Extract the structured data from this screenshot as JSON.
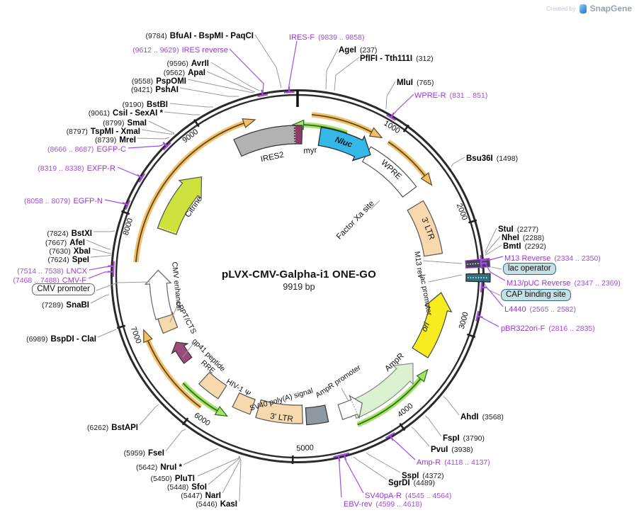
{
  "watermark": {
    "created_by": "Created by",
    "brand": "SnapGene"
  },
  "plasmid": {
    "name": "pLVX-CMV-Galpha-i1 ONE-GO",
    "length": "9919 bp"
  },
  "ticks": [
    "1000",
    "2000",
    "3000",
    "4000",
    "5000",
    "6000",
    "7000",
    "8000",
    "9000"
  ],
  "sites": [
    {
      "pos": "(9784)",
      "name": "BfuAI - BspMI - PaqCI"
    },
    {
      "pos": "(9596)",
      "name": "AvrII"
    },
    {
      "pos": "(9562)",
      "name": "ApaI"
    },
    {
      "pos": "(9558)",
      "name": "PspOMI"
    },
    {
      "pos": "(9421)",
      "name": "PshAI"
    },
    {
      "pos": "(9190)",
      "name": "BstBI"
    },
    {
      "pos": "(9061)",
      "name": "CsiI - SexAI *"
    },
    {
      "pos": "(8799)",
      "name": "SmaI"
    },
    {
      "pos": "(8797)",
      "name": "TspMI - XmaI"
    },
    {
      "pos": "(8739)",
      "name": "MreI"
    },
    {
      "pos": "(7824)",
      "name": "BstXI"
    },
    {
      "pos": "(7667)",
      "name": "AfeI"
    },
    {
      "pos": "(7630)",
      "name": "XbaI"
    },
    {
      "pos": "(7624)",
      "name": "SpeI"
    },
    {
      "pos": "(7289)",
      "name": "SnaBI"
    },
    {
      "pos": "(6989)",
      "name": "BspDI - ClaI"
    },
    {
      "pos": "(6262)",
      "name": "BstAPI"
    },
    {
      "pos": "(5959)",
      "name": "FseI"
    },
    {
      "pos": "(5642)",
      "name": "NruI *"
    },
    {
      "pos": "(5450)",
      "name": "PluTI"
    },
    {
      "pos": "(5448)",
      "name": "SfoI"
    },
    {
      "pos": "(5447)",
      "name": "NarI"
    },
    {
      "pos": "(5446)",
      "name": "KasI"
    },
    {
      "pos": "(237)",
      "name": "AgeI"
    },
    {
      "pos": "(312)",
      "name": "PflFI - Tth111I"
    },
    {
      "pos": "(765)",
      "name": "MluI"
    },
    {
      "pos": "(1498)",
      "name": "Bsu36I"
    },
    {
      "pos": "(2277)",
      "name": "StuI"
    },
    {
      "pos": "(2288)",
      "name": "NheI"
    },
    {
      "pos": "(2292)",
      "name": "BmtI"
    },
    {
      "pos": "(3568)",
      "name": "AhdI"
    },
    {
      "pos": "(3790)",
      "name": "FspI"
    },
    {
      "pos": "(3938)",
      "name": "PvuI"
    },
    {
      "pos": "(4372)",
      "name": "SspI"
    },
    {
      "pos": "(4489)",
      "name": "SgrDI"
    }
  ],
  "primers": [
    {
      "name": "IRES reverse",
      "range": "(9612 .. 9629)"
    },
    {
      "name": "IRES-F",
      "range": "(9839 .. 9858)"
    },
    {
      "name": "WPRE-R",
      "range": "(831 .. 851)"
    },
    {
      "name": "EGFP-C",
      "range": "(8666 .. 8687)"
    },
    {
      "name": "EXFP-R",
      "range": "(8319 .. 8338)"
    },
    {
      "name": "EGFP-N",
      "range": "(8058 .. 8079)"
    },
    {
      "name": "LNCX",
      "range": "(7514 .. 7538)"
    },
    {
      "name": "CMV-F",
      "range": "(7468 .. 7488)"
    },
    {
      "name": "M13 Reverse",
      "range": "(2334 .. 2350)"
    },
    {
      "name": "M13/pUC Reverse",
      "range": "(2347 .. 2369)"
    },
    {
      "name": "L4440",
      "range": "(2565 .. 2582)"
    },
    {
      "name": "pBR322ori-F",
      "range": "(2816 .. 2835)"
    },
    {
      "name": "Amp-R",
      "range": "(4118 .. 4137)"
    },
    {
      "name": "SV40pA-R",
      "range": "(4545 .. 4564)"
    },
    {
      "name": "EBV-rev",
      "range": "(4599 .. 4618)"
    }
  ],
  "boxed": {
    "cmv_promoter": "CMV promoter",
    "lac_operator": "lac operator",
    "cap_binding": "CAP binding site"
  },
  "features": {
    "citrine": {
      "label": "Citrine"
    },
    "ires2": {
      "label": "IRES2"
    },
    "myr": {
      "label": "myr"
    },
    "nluc": {
      "label": "Nluc"
    },
    "wpre": {
      "label": "WPRE"
    },
    "factor_xa": {
      "label": "Factor Xa site"
    },
    "ltr3_right": {
      "label": "3' LTR"
    },
    "m13_rev": {
      "label": "M13 rev"
    },
    "lac_promoter": {
      "label": "lac promoter"
    },
    "ori": {
      "label": "ori"
    },
    "ampr": {
      "label": "AmpR"
    },
    "ampr_promoter": {
      "label": "AmpR promoter"
    },
    "sv40_polya": {
      "label": "SV40 poly(A) signal"
    },
    "ltr3_bottom": {
      "label": "3' LTR"
    },
    "hiv_psi": {
      "label": "HIV-1 Ψ"
    },
    "rre": {
      "label": "RRE"
    },
    "gp41": {
      "label": "gp41 peptide"
    },
    "cppt": {
      "label": "cPPT/CTS"
    },
    "cmv_enhancer": {
      "label": "CMV enhancer"
    }
  },
  "colors": {
    "primer_purple": "#9b35cf",
    "ring": "#2a2a2a",
    "leader_gray": "#9a9a9a",
    "citrine": "#cde23d",
    "nluc_cyan": "#35b7e8",
    "ltr_tan": "#f8d9ae",
    "ori_yellow": "#f7ec20",
    "ampr_green": "#daf2d0",
    "orf_orange": "#f3c069",
    "arrow_green": "#a6e06a",
    "gray_block": "#8d98a0",
    "ires2_gray": "#b2b2b2",
    "myr_plum": "#8d3c66"
  }
}
